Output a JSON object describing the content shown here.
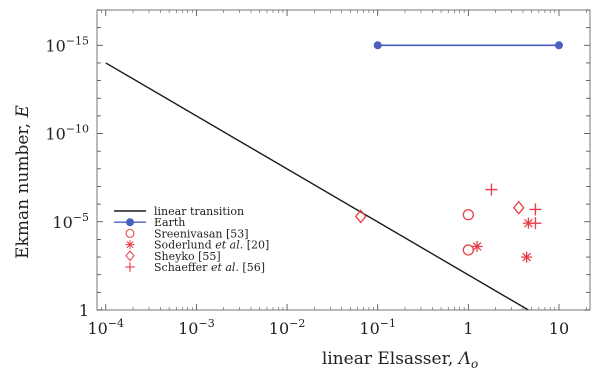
{
  "chart_data": {
    "type": "scatter",
    "title": "",
    "xlabel": "linear Elsasser, ",
    "xlabel_symbol": "Λ",
    "xlabel_subscript": "o",
    "ylabel": "Ekman number, ",
    "ylabel_symbol": "E",
    "x_scale": "log",
    "y_scale": "log",
    "y_inverted": true,
    "xlim": [
      8e-05,
      22
    ],
    "ylim": [
      1,
      1e-17
    ],
    "grid": false,
    "legend_position": "lower-left",
    "x_ticks": [
      {
        "value": 0.0001,
        "base": "10",
        "exp": "−4"
      },
      {
        "value": 0.001,
        "base": "10",
        "exp": "−3"
      },
      {
        "value": 0.01,
        "base": "10",
        "exp": "−2"
      },
      {
        "value": 0.1,
        "base": "10",
        "exp": "−1"
      },
      {
        "value": 1,
        "base": "1",
        "exp": ""
      },
      {
        "value": 10,
        "base": "10",
        "exp": ""
      }
    ],
    "y_ticks": [
      {
        "value": 1e-15,
        "base": "10",
        "exp": "−15"
      },
      {
        "value": 1e-10,
        "base": "10",
        "exp": "−10"
      },
      {
        "value": 1e-05,
        "base": "10",
        "exp": "−5"
      },
      {
        "value": 1,
        "base": "1",
        "exp": ""
      }
    ],
    "series": [
      {
        "name": "linear transition",
        "kind": "line",
        "color": "#1a1a1a",
        "marker": "none",
        "points": [
          [
            0.0001,
            1e-14
          ],
          [
            4.6,
            1
          ]
        ]
      },
      {
        "name": "Earth",
        "kind": "line",
        "color": "#4a5fbf",
        "marker": "dot",
        "points": [
          [
            0.1,
            1e-15
          ],
          [
            10,
            1e-15
          ]
        ]
      },
      {
        "name": "Sreenivasan [53]",
        "kind": "scatter",
        "color": "#e8404a",
        "marker": "circle",
        "points": [
          [
            1,
            4e-06
          ],
          [
            1,
            0.0004
          ]
        ]
      },
      {
        "name": "Soderlund et al. [20]",
        "name_pre": "Soderlund ",
        "name_em": "et al.",
        "name_post": " [20]",
        "kind": "scatter",
        "color": "#e8404a",
        "marker": "asterisk",
        "points": [
          [
            1.25,
            0.00025
          ],
          [
            4.6,
            1.2e-05
          ],
          [
            4.4,
            0.001
          ]
        ]
      },
      {
        "name": "Sheyko [55]",
        "kind": "scatter",
        "color": "#e8404a",
        "marker": "diamond",
        "points": [
          [
            0.065,
            5e-06
          ],
          [
            3.6,
            1.6e-06
          ]
        ]
      },
      {
        "name": "Schaeffer et al. [56]",
        "name_pre": "Schaeffer ",
        "name_em": "et al.",
        "name_post": " [56]",
        "kind": "scatter",
        "color": "#e8404a",
        "marker": "plus",
        "points": [
          [
            1.8,
            1.5e-07
          ],
          [
            5.5,
            2e-06
          ],
          [
            5.5,
            1.2e-05
          ]
        ]
      }
    ]
  }
}
